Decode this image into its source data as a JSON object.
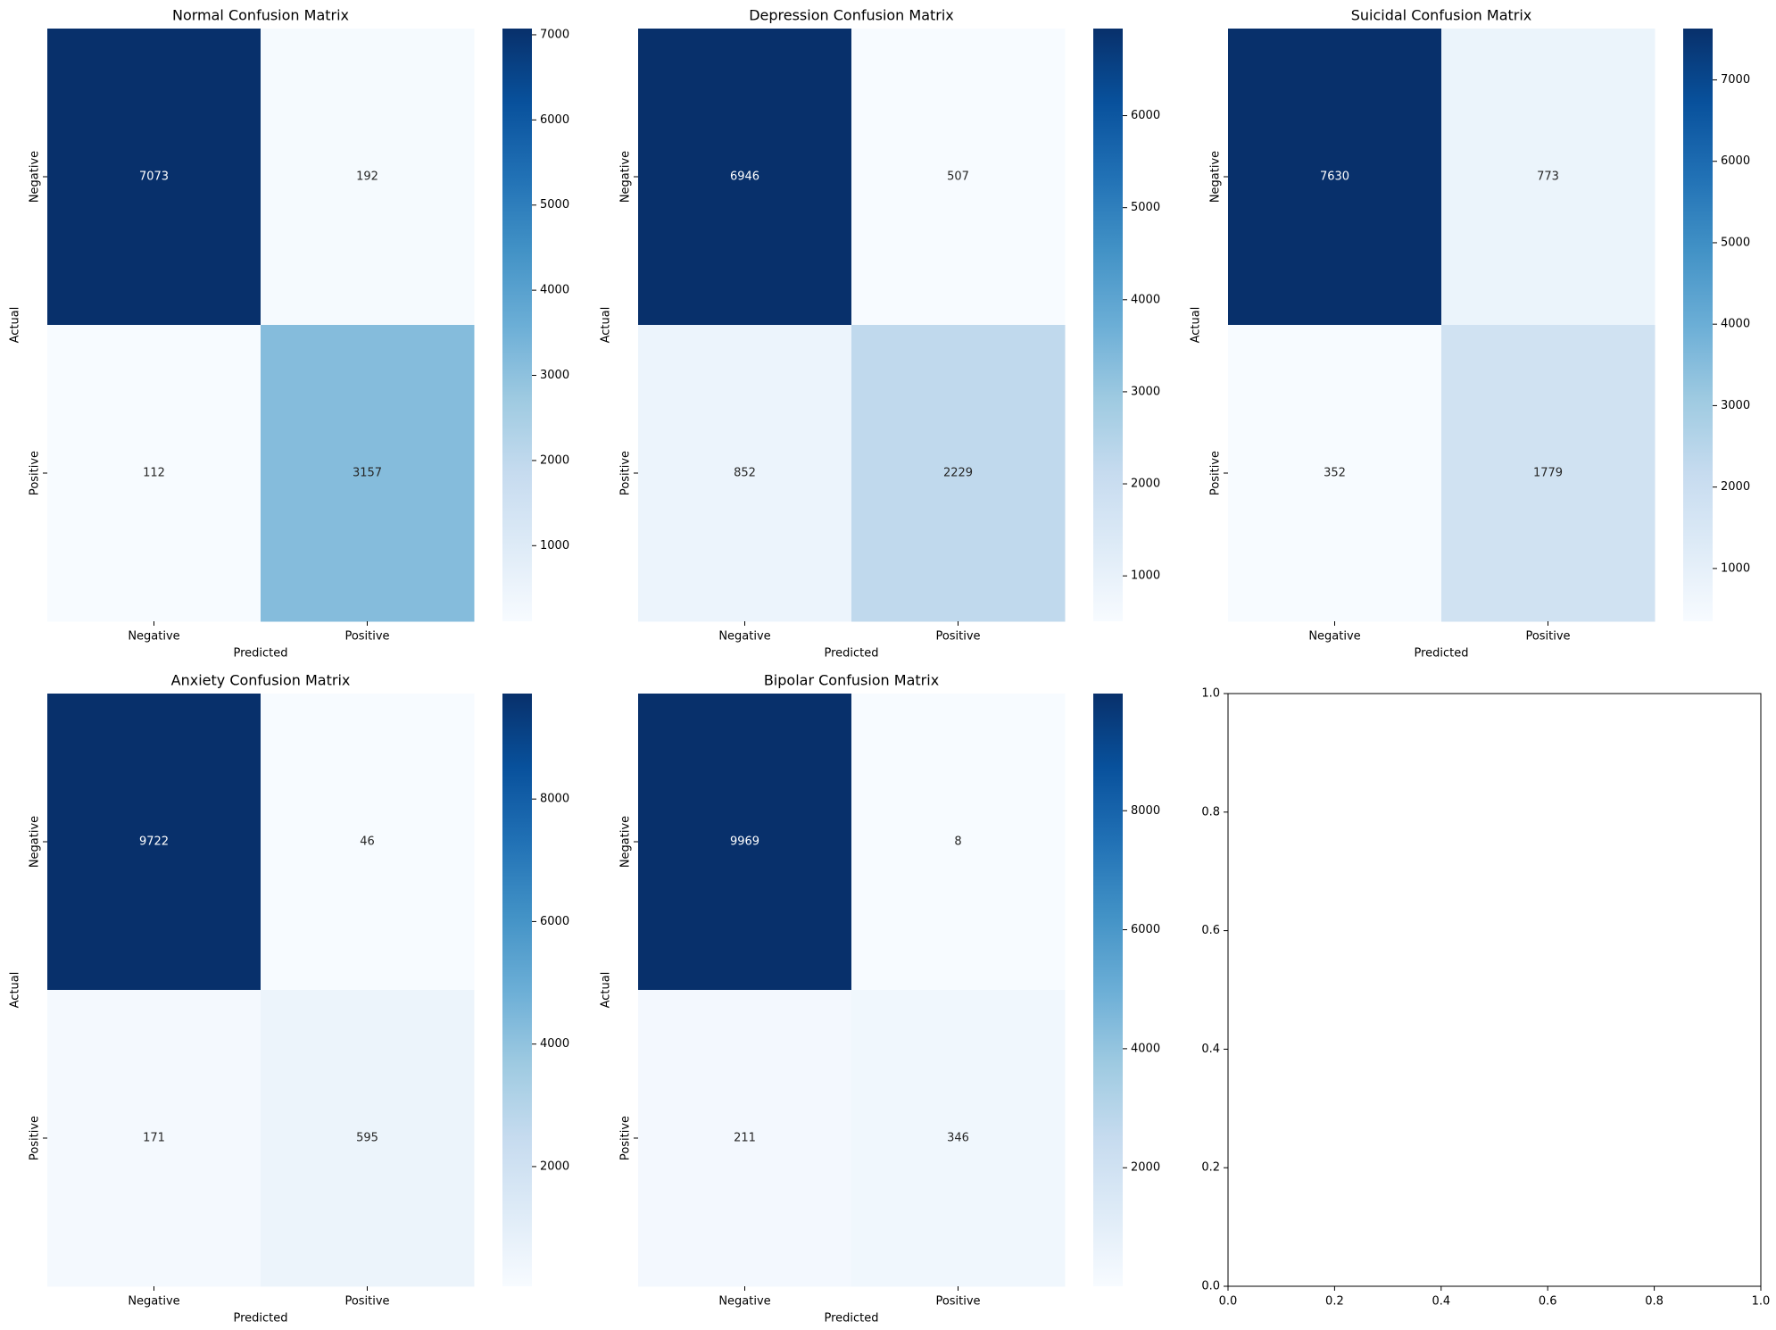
{
  "chart_data": [
    {
      "type": "heatmap",
      "title": "Normal Confusion Matrix",
      "xlabel": "Predicted",
      "ylabel": "Actual",
      "x_categories": [
        "Negative",
        "Positive"
      ],
      "y_categories": [
        "Negative",
        "Positive"
      ],
      "values": [
        [
          7073,
          192
        ],
        [
          112,
          3157
        ]
      ],
      "colormap": "Blues",
      "colorbar_ticks": [
        1000,
        2000,
        3000,
        4000,
        5000,
        6000,
        7000
      ],
      "colorbar_tick_labels": [
        "1000",
        "2000",
        "3000",
        "4000",
        "5000",
        "6000",
        "7000"
      ]
    },
    {
      "type": "heatmap",
      "title": "Depression Confusion Matrix",
      "xlabel": "Predicted",
      "ylabel": "Actual",
      "x_categories": [
        "Negative",
        "Positive"
      ],
      "y_categories": [
        "Negative",
        "Positive"
      ],
      "values": [
        [
          6946,
          507
        ],
        [
          852,
          2229
        ]
      ],
      "colormap": "Blues",
      "colorbar_ticks": [
        1000,
        2000,
        3000,
        4000,
        5000,
        6000
      ],
      "colorbar_tick_labels": [
        "1000",
        "2000",
        "3000",
        "4000",
        "5000",
        "6000"
      ]
    },
    {
      "type": "heatmap",
      "title": "Suicidal Confusion Matrix",
      "xlabel": "Predicted",
      "ylabel": "Actual",
      "x_categories": [
        "Negative",
        "Positive"
      ],
      "y_categories": [
        "Negative",
        "Positive"
      ],
      "values": [
        [
          7630,
          773
        ],
        [
          352,
          1779
        ]
      ],
      "colormap": "Blues",
      "colorbar_ticks": [
        1000,
        2000,
        3000,
        4000,
        5000,
        6000,
        7000
      ],
      "colorbar_tick_labels": [
        "1000",
        "2000",
        "3000",
        "4000",
        "5000",
        "6000",
        "7000"
      ]
    },
    {
      "type": "heatmap",
      "title": "Anxiety Confusion Matrix",
      "xlabel": "Predicted",
      "ylabel": "Actual",
      "x_categories": [
        "Negative",
        "Positive"
      ],
      "y_categories": [
        "Negative",
        "Positive"
      ],
      "values": [
        [
          9722,
          46
        ],
        [
          171,
          595
        ]
      ],
      "colormap": "Blues",
      "colorbar_ticks": [
        2000,
        4000,
        6000,
        8000
      ],
      "colorbar_tick_labels": [
        "2000",
        "4000",
        "6000",
        "8000"
      ]
    },
    {
      "type": "heatmap",
      "title": "Bipolar Confusion Matrix",
      "xlabel": "Predicted",
      "ylabel": "Actual",
      "x_categories": [
        "Negative",
        "Positive"
      ],
      "y_categories": [
        "Negative",
        "Positive"
      ],
      "values": [
        [
          9969,
          8
        ],
        [
          211,
          346
        ]
      ],
      "colormap": "Blues",
      "colorbar_ticks": [
        2000,
        4000,
        6000,
        8000
      ],
      "colorbar_tick_labels": [
        "2000",
        "4000",
        "6000",
        "8000"
      ]
    },
    {
      "type": "scatter",
      "title": "",
      "xlabel": "",
      "ylabel": "",
      "xlim": [
        0.0,
        1.0
      ],
      "ylim": [
        0.0,
        1.0
      ],
      "x_ticks": [
        "0.0",
        "0.2",
        "0.4",
        "0.6",
        "0.8",
        "1.0"
      ],
      "y_ticks": [
        "0.0",
        "0.2",
        "0.4",
        "0.6",
        "0.8",
        "1.0"
      ],
      "series": []
    }
  ]
}
